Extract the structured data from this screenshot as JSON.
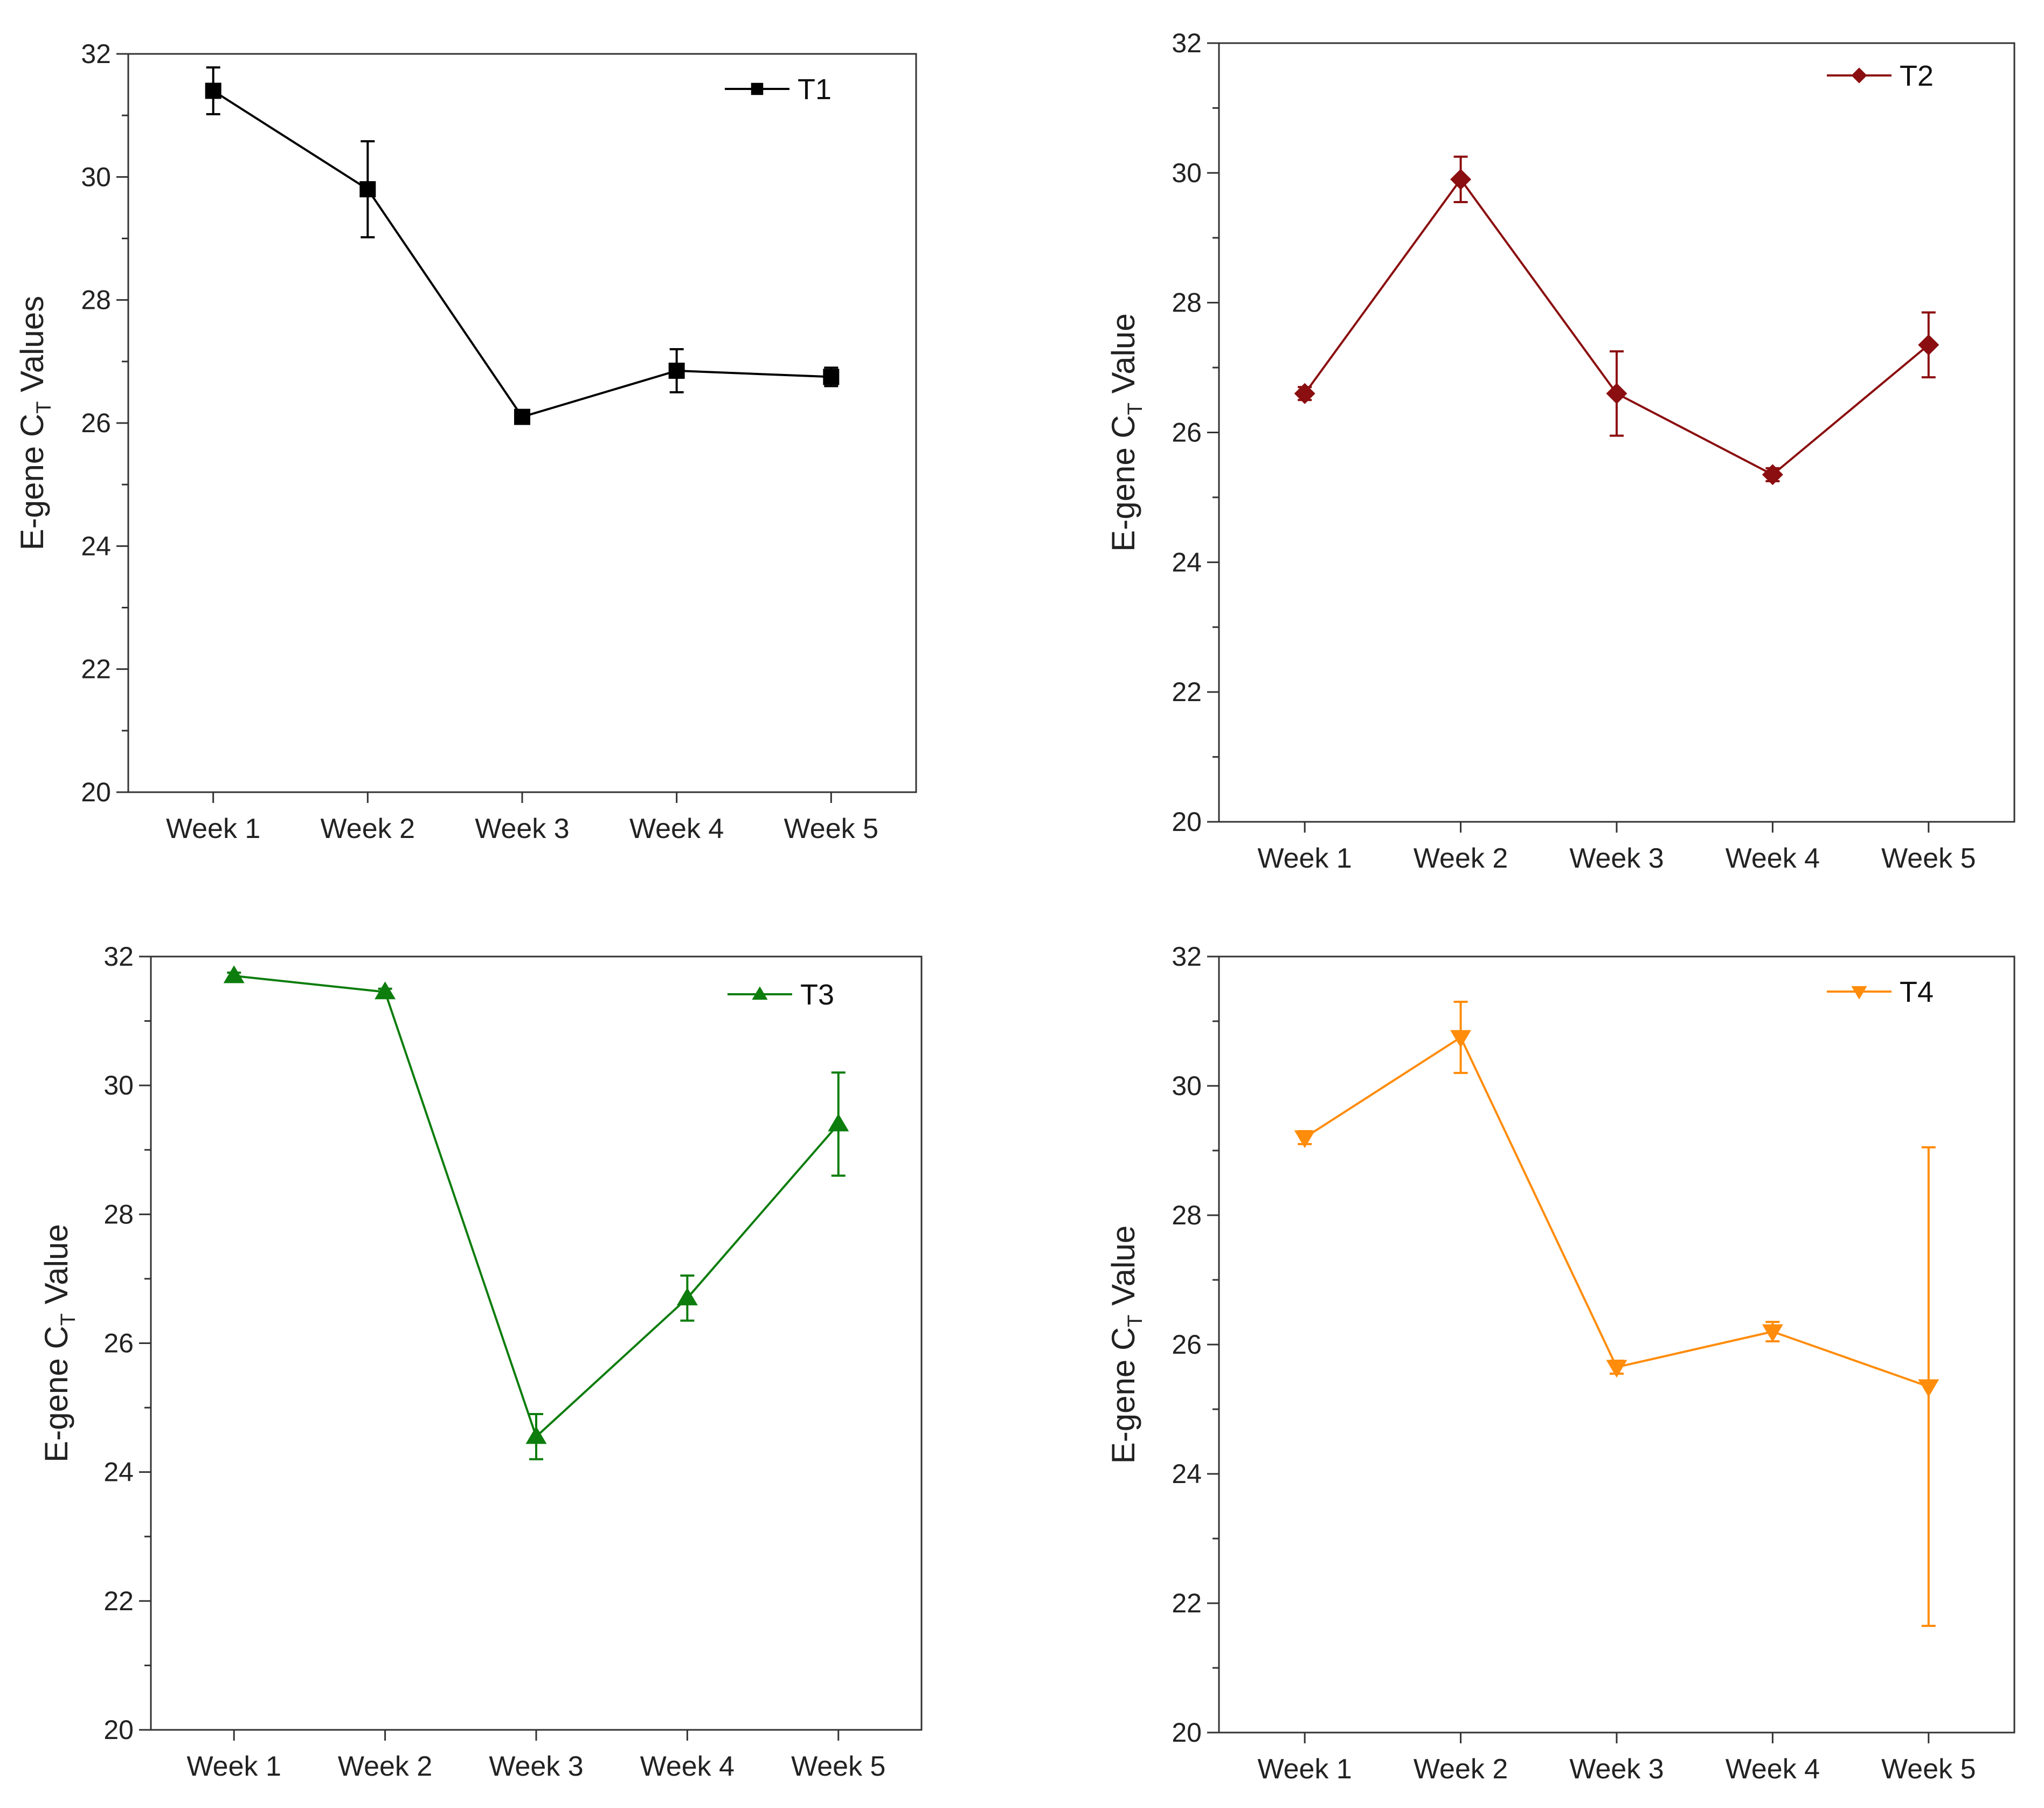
{
  "chart_data": [
    {
      "type": "line",
      "categories": [
        "Week 1",
        "Week 2",
        "Week 3",
        "Week 4",
        "Week 5"
      ],
      "ylabel": {
        "prefix": "E-gene C",
        "sub": "T",
        "suffix": " Values"
      },
      "ylim": [
        20,
        32
      ],
      "yticks": [
        "20",
        "22",
        "24",
        "26",
        "28",
        "30",
        "32"
      ],
      "series": [
        {
          "name": "T1",
          "values": [
            31.4,
            29.8,
            26.1,
            26.85,
            26.75
          ],
          "errors": [
            0.38,
            0.78,
            0.1,
            0.35,
            0.15
          ],
          "color": "#000000",
          "marker": "square"
        }
      ]
    },
    {
      "type": "line",
      "categories": [
        "Week 1",
        "Week 2",
        "Week 3",
        "Week 4",
        "Week 5"
      ],
      "ylabel": {
        "prefix": "E-gene C",
        "sub": "T",
        "suffix": " Value"
      },
      "ylim": [
        20,
        32
      ],
      "yticks": [
        "20",
        "22",
        "24",
        "26",
        "28",
        "30",
        "32"
      ],
      "series": [
        {
          "name": "T2",
          "values": [
            26.6,
            29.9,
            26.6,
            25.35,
            27.35
          ],
          "errors": [
            0.1,
            0.35,
            0.65,
            0.1,
            0.5
          ],
          "color": "#8b0e10",
          "marker": "diamond"
        }
      ]
    },
    {
      "type": "line",
      "categories": [
        "Week 1",
        "Week 2",
        "Week 3",
        "Week 4",
        "Week 5"
      ],
      "ylabel": {
        "prefix": "E-gene C",
        "sub": "T",
        "suffix": " Value"
      },
      "ylim": [
        20,
        32
      ],
      "yticks": [
        "20",
        "22",
        "24",
        "26",
        "28",
        "30",
        "32"
      ],
      "series": [
        {
          "name": "T3",
          "values": [
            31.7,
            31.45,
            24.55,
            26.7,
            29.4
          ],
          "errors": [
            0.05,
            0.05,
            0.35,
            0.35,
            0.8
          ],
          "color": "#0d7d0d",
          "marker": "triangle-up"
        }
      ]
    },
    {
      "type": "line",
      "categories": [
        "Week 1",
        "Week 2",
        "Week 3",
        "Week 4",
        "Week 5"
      ],
      "ylabel": {
        "prefix": "E-gene C",
        "sub": "T",
        "suffix": " Value"
      },
      "ylim": [
        20,
        32
      ],
      "yticks": [
        "20",
        "22",
        "24",
        "26",
        "28",
        "30",
        "32"
      ],
      "series": [
        {
          "name": "T4",
          "values": [
            29.2,
            30.75,
            25.65,
            26.2,
            25.35
          ],
          "errors": [
            0.1,
            0.55,
            0.1,
            0.15,
            3.7
          ],
          "color": "#ff8c0a",
          "marker": "triangle-down"
        }
      ]
    }
  ]
}
